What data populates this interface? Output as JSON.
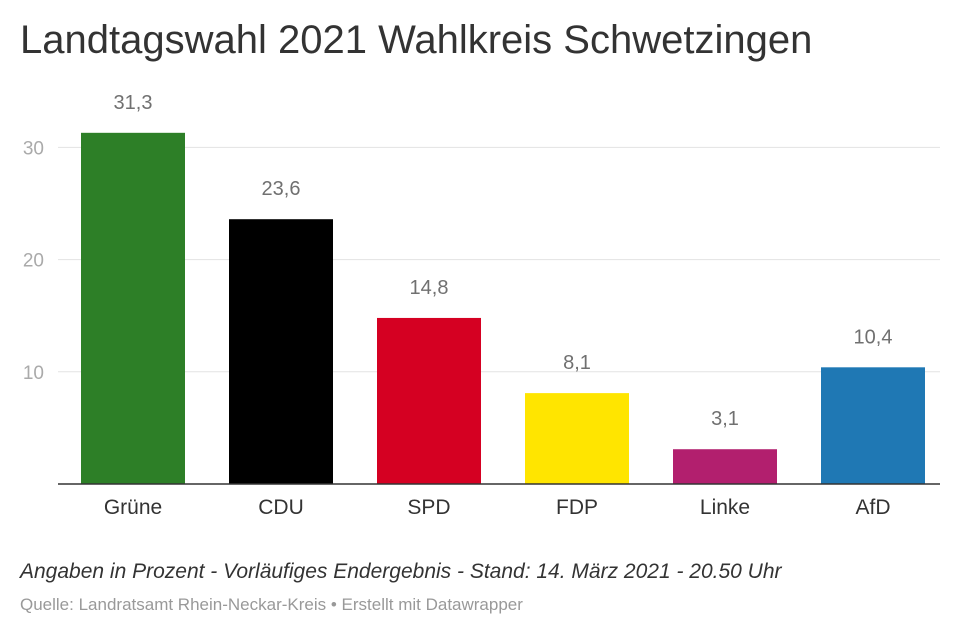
{
  "header": {
    "title": "Landtagswahl 2021 Wahlkreis Schwetzingen"
  },
  "footer": {
    "note": "Angaben in Prozent - Vorläufiges Endergebnis - Stand: 14. März 2021 - 20.50 Uhr",
    "source": "Quelle: Landratsamt Rhein-Neckar-Kreis • Erstellt mit Datawrapper"
  },
  "chart_data": {
    "type": "bar",
    "categories": [
      "Grüne",
      "CDU",
      "SPD",
      "FDP",
      "Linke",
      "AfD"
    ],
    "values": [
      31.3,
      23.6,
      14.8,
      8.1,
      3.1,
      10.4
    ],
    "value_labels": [
      "31,3",
      "23,6",
      "14,8",
      "8,1",
      "3,1",
      "10,4"
    ],
    "colors": [
      "#2d7f27",
      "#000000",
      "#d50022",
      "#ffe500",
      "#b21f6e",
      "#1f78b4"
    ],
    "yticks": [
      10,
      20,
      30
    ],
    "ylim": [
      0,
      32
    ],
    "grid": true,
    "title": "Landtagswahl 2021 Wahlkreis Schwetzingen",
    "xlabel": "",
    "ylabel": ""
  }
}
